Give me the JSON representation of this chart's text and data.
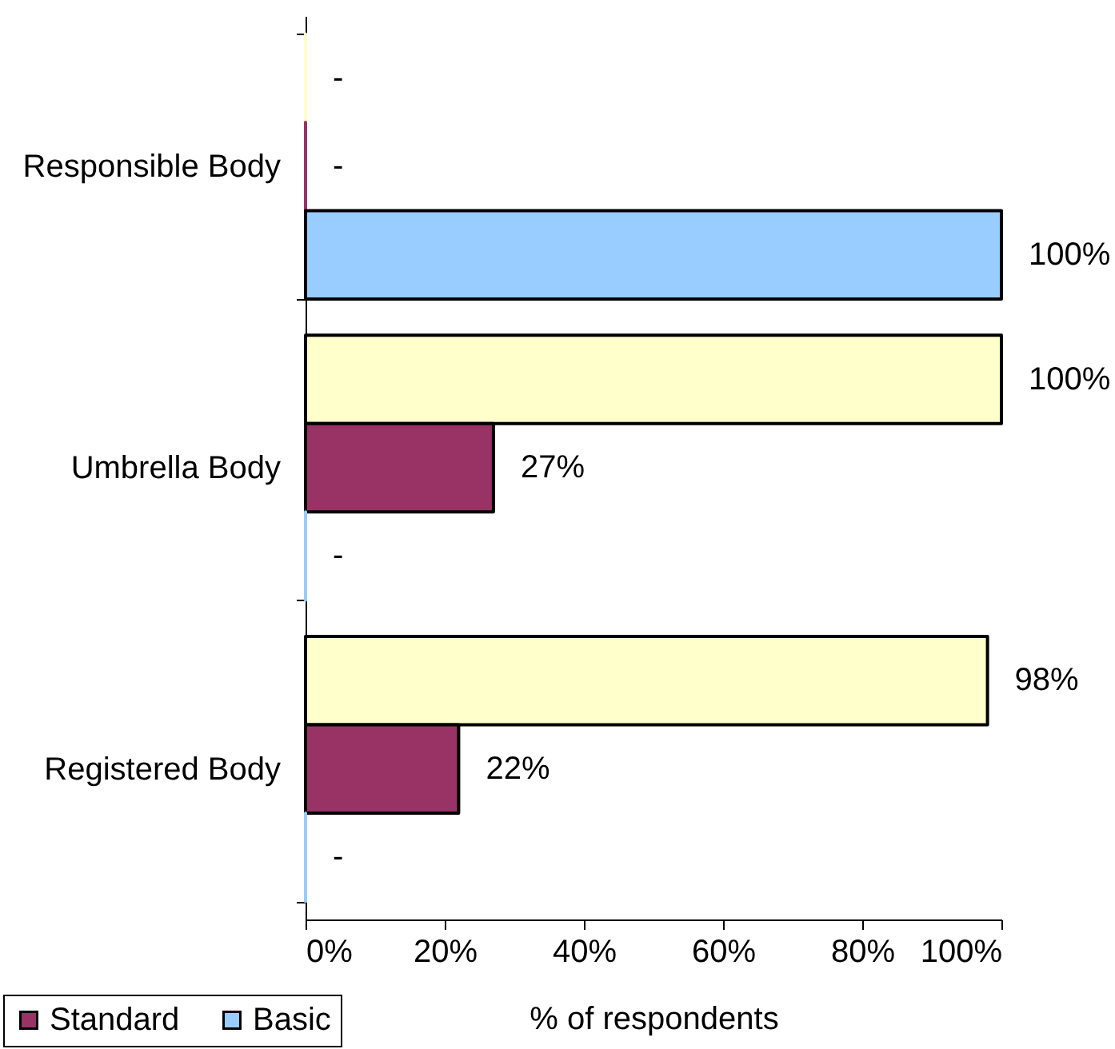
{
  "chart_data": {
    "type": "bar",
    "orientation": "horizontal",
    "categories": [
      "Responsible Body",
      "Umbrella Body",
      "Registered Body"
    ],
    "series": [
      {
        "color": "#ffffcc",
        "values": [
          0,
          100,
          98
        ],
        "value_labels": [
          "-",
          "100%",
          "98%"
        ]
      },
      {
        "name": "Standard",
        "color": "#993366",
        "values": [
          0,
          27,
          22
        ],
        "value_labels": [
          "-",
          "27%",
          "22%"
        ]
      },
      {
        "name": "Basic",
        "color": "#99ccff",
        "values": [
          100,
          0,
          0
        ],
        "value_labels": [
          "100%",
          "-",
          "-"
        ]
      }
    ],
    "xlabel": "% of respondents",
    "xlim": [
      0,
      100
    ],
    "xticks": [
      {
        "value": 0,
        "label": "0%"
      },
      {
        "value": 20,
        "label": "20%"
      },
      {
        "value": 40,
        "label": "40%"
      },
      {
        "value": 60,
        "label": "60%"
      },
      {
        "value": 80,
        "label": "80%"
      },
      {
        "value": 100,
        "label": "100%"
      }
    ],
    "legend": "bottom left"
  }
}
